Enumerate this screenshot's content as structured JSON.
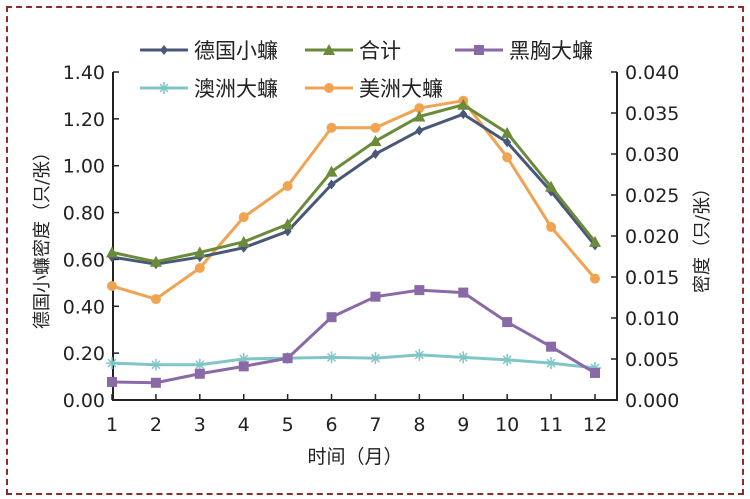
{
  "chart_data": {
    "type": "line",
    "xlabel": "时间（月）",
    "ylabel_left": "德国小蠊密度（只/张）",
    "ylabel_right": "密度（只/张）",
    "x": [
      1,
      2,
      3,
      4,
      5,
      6,
      7,
      8,
      9,
      10,
      11,
      12
    ],
    "x_ticks": [
      "1",
      "2",
      "3",
      "4",
      "5",
      "6",
      "7",
      "8",
      "9",
      "10",
      "11",
      "12"
    ],
    "ylim_left": [
      0,
      1.4
    ],
    "yticks_left": [
      "0.00",
      "0.20",
      "0.40",
      "0.60",
      "0.80",
      "1.00",
      "1.20",
      "1.40"
    ],
    "ylim_right": [
      0,
      0.04
    ],
    "yticks_right": [
      "0.000",
      "0.005",
      "0.010",
      "0.015",
      "0.020",
      "0.025",
      "0.030",
      "0.035",
      "0.040"
    ],
    "grid": false,
    "legend_position": "top",
    "series": [
      {
        "name": "德国小蠊",
        "axis": "left",
        "color": "#4a5878",
        "marker": "diamond",
        "values": [
          0.61,
          0.58,
          0.61,
          0.65,
          0.72,
          0.92,
          1.05,
          1.15,
          1.22,
          1.1,
          0.89,
          0.66
        ]
      },
      {
        "name": "合计",
        "axis": "left",
        "color": "#6b8a3a",
        "marker": "triangle",
        "values": [
          0.63,
          0.59,
          0.63,
          0.675,
          0.75,
          0.975,
          1.105,
          1.21,
          1.26,
          1.14,
          0.91,
          0.675
        ]
      },
      {
        "name": "黑胸大蠊",
        "axis": "right",
        "color": "#8a6aa6",
        "marker": "square",
        "values": [
          0.0022,
          0.0021,
          0.0032,
          0.0041,
          0.0051,
          0.0101,
          0.0126,
          0.0134,
          0.0131,
          0.0095,
          0.0065,
          0.0033
        ]
      },
      {
        "name": "澳洲大蠊",
        "axis": "right",
        "color": "#80c6c6",
        "marker": "star",
        "values": [
          0.0045,
          0.0043,
          0.0043,
          0.005,
          0.0051,
          0.0052,
          0.0051,
          0.0055,
          0.0052,
          0.0049,
          0.0045,
          0.0039
        ]
      },
      {
        "name": "美洲大蠊",
        "axis": "right",
        "color": "#f0a452",
        "marker": "circle",
        "values": [
          0.0139,
          0.0123,
          0.0161,
          0.0223,
          0.0261,
          0.0332,
          0.0332,
          0.0356,
          0.0365,
          0.0296,
          0.0211,
          0.0148
        ]
      }
    ]
  }
}
